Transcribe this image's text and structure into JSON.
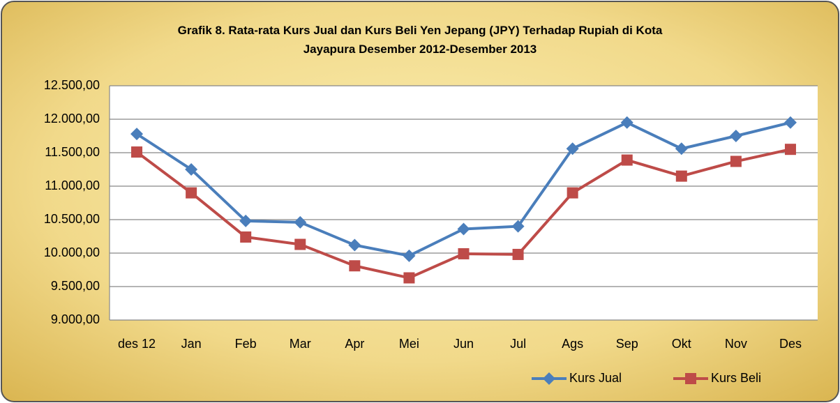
{
  "chart_data": {
    "type": "line",
    "title": "Grafik 8. Rata-rata Kurs Jual dan Kurs Beli Yen Jepang (JPY) Terhadap Rupiah di Kota Jayapura Desember 2012-Desember 2013",
    "categories": [
      "des 12",
      "Jan",
      "Feb",
      "Mar",
      "Apr",
      "Mei",
      "Jun",
      "Jul",
      "Ags",
      "Sep",
      "Okt",
      "Nov",
      "Des"
    ],
    "series": [
      {
        "name": "Kurs Jual",
        "color": "#4a7ebb",
        "marker": "diamond",
        "values": [
          11780,
          11250,
          10480,
          10460,
          10120,
          9960,
          10360,
          10400,
          11560,
          11950,
          11560,
          11750,
          11950
        ]
      },
      {
        "name": "Kurs Beli",
        "color": "#be4b48",
        "marker": "square",
        "values": [
          11510,
          10900,
          10240,
          10130,
          9810,
          9630,
          9990,
          9980,
          10900,
          11390,
          11150,
          11370,
          11550
        ]
      }
    ],
    "ylim": [
      9000,
      12500
    ],
    "yticks": [
      {
        "value": 9000,
        "label": "9.000,00"
      },
      {
        "value": 9500,
        "label": "9.500,00"
      },
      {
        "value": 10000,
        "label": "10.000,00"
      },
      {
        "value": 10500,
        "label": "10.500,00"
      },
      {
        "value": 11000,
        "label": "11.000,00"
      },
      {
        "value": 11500,
        "label": "11.500,00"
      },
      {
        "value": 12000,
        "label": "12.000,00"
      },
      {
        "value": 12500,
        "label": "12.500,00"
      }
    ],
    "grid": true,
    "legend": "bottom-right"
  }
}
